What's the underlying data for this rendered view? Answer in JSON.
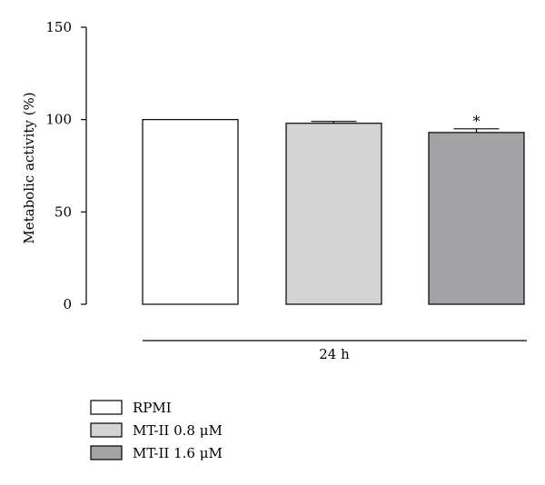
{
  "chart_data": {
    "type": "bar",
    "title": "",
    "ylabel": "Metabolic activity (%)",
    "xlabel": "24 h",
    "ylim": [
      0,
      150
    ],
    "yticks": [
      0,
      50,
      100,
      150
    ],
    "categories": [
      "RPMI",
      "MT-II 0.8 μM",
      "MT-II 1.6 μM"
    ],
    "values": [
      100,
      98,
      93
    ],
    "errors": [
      0,
      1,
      2
    ],
    "annotations": [
      "",
      "",
      "*"
    ],
    "colors": [
      "#ffffff",
      "#d4d4d4",
      "#a3a3a6"
    ],
    "legend": {
      "placement": "bottom-left",
      "items": [
        "RPMI",
        "MT-II 0.8 μM",
        "MT-II 1.6 μM"
      ]
    },
    "grid": false
  }
}
